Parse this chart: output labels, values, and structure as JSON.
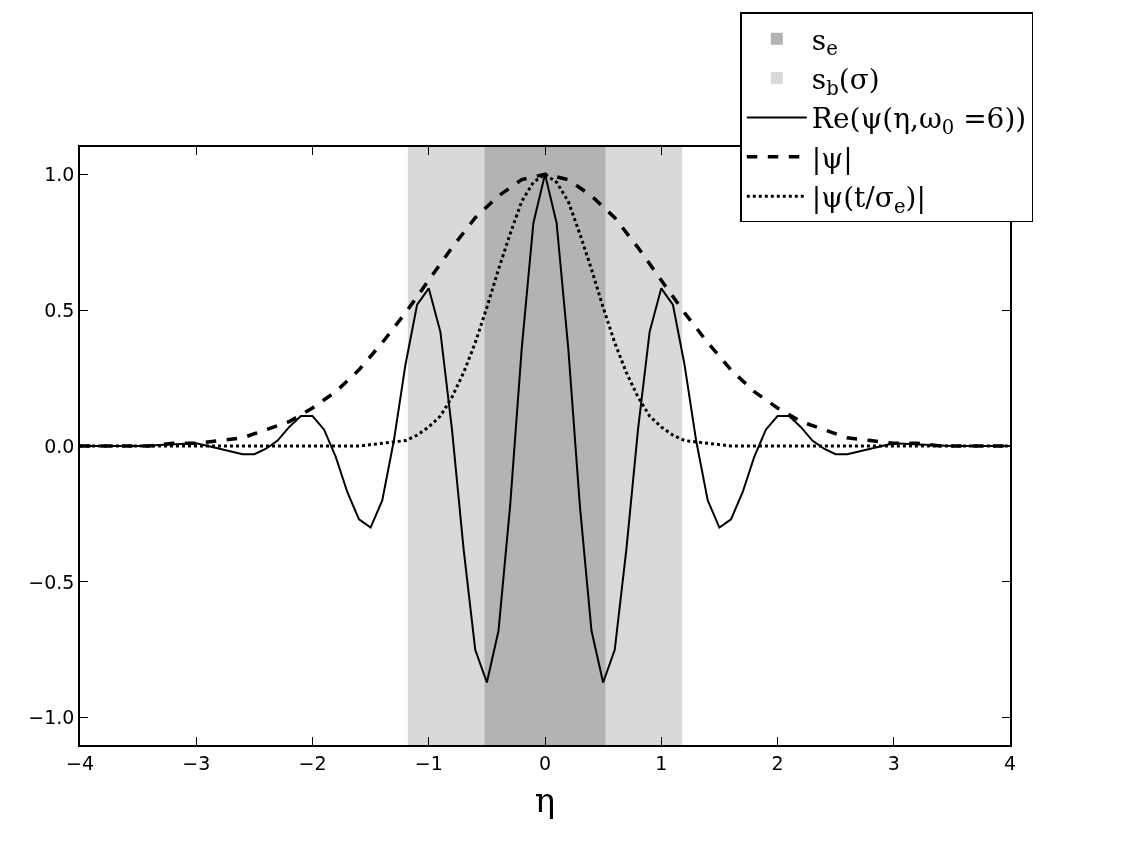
{
  "chart_data": {
    "type": "line",
    "xlabel": "η",
    "xlim": [
      -4,
      4
    ],
    "ylim": [
      -1.1,
      1.1
    ],
    "xticks": [
      {
        "value": -4,
        "label": "−4"
      },
      {
        "value": -3,
        "label": "−3"
      },
      {
        "value": -2,
        "label": "−2"
      },
      {
        "value": -1,
        "label": "−1"
      },
      0,
      1,
      2,
      3,
      4
    ],
    "yticks": [
      {
        "value": -1,
        "label": "−1.0"
      },
      {
        "value": -0.5,
        "label": "−0.5"
      },
      {
        "value": 0,
        "label": "0.0"
      },
      {
        "value": 0.5,
        "label": "0.5"
      },
      {
        "value": 1,
        "label": "1.0"
      }
    ],
    "grid": false,
    "legend": "top right",
    "marker": "none",
    "bands": [
      {
        "axis": "x",
        "from": -1.18,
        "to": 1.18,
        "label": "s$_{b}$(σ)",
        "color": "#d9d9d9"
      },
      {
        "axis": "x",
        "from": -0.52,
        "to": 0.52,
        "label": "s$_{e}$",
        "color": "#b3b3b3"
      }
    ],
    "series": [
      {
        "name": "Re(ψ(η,ω$_{0}$ =6))",
        "color": "#000000",
        "line_style": "solid",
        "x": [
          -4,
          -3.5,
          -3,
          -2.9,
          -2.8,
          -2.7,
          -2.6,
          -2.5,
          -2.4,
          -2.3,
          -2.2,
          -2.1,
          -2,
          -1.9,
          -1.8,
          -1.7,
          -1.6,
          -1.5,
          -1.4,
          -1.3,
          -1.2,
          -1.1,
          -1,
          -0.9,
          -0.8,
          -0.7,
          -0.6,
          -0.5,
          -0.4,
          -0.3,
          -0.2,
          -0.1,
          0,
          0.1,
          0.2,
          0.3,
          0.4,
          0.5,
          0.6,
          0.7,
          0.8,
          0.9,
          1,
          1.1,
          1.2,
          1.3,
          1.4,
          1.5,
          1.6,
          1.7,
          1.8,
          1.9,
          2,
          2.1,
          2.2,
          2.3,
          2.4,
          2.5,
          2.6,
          2.7,
          2.8,
          2.9,
          3,
          3.5,
          4
        ],
        "values": [
          0,
          0,
          0.01,
          0,
          -0.01,
          -0.02,
          -0.03,
          -0.03,
          -0.01,
          0.02,
          0.07,
          0.11,
          0.11,
          0.06,
          -0.04,
          -0.17,
          -0.27,
          -0.3,
          -0.2,
          0.02,
          0.3,
          0.52,
          0.58,
          0.42,
          0.06,
          -0.38,
          -0.75,
          -0.87,
          -0.68,
          -0.22,
          0.36,
          0.82,
          1,
          0.82,
          0.36,
          -0.22,
          -0.68,
          -0.87,
          -0.75,
          -0.38,
          0.06,
          0.42,
          0.58,
          0.52,
          0.3,
          0.02,
          -0.2,
          -0.3,
          -0.27,
          -0.17,
          -0.04,
          0.06,
          0.11,
          0.11,
          0.07,
          0.02,
          -0.01,
          -0.03,
          -0.03,
          -0.02,
          -0.01,
          0,
          0.01,
          0,
          0
        ]
      },
      {
        "name": "|ψ|",
        "color": "#000000",
        "line_style": "dashed",
        "x": [
          -4,
          -3.8,
          -3.6,
          -3.4,
          -3.2,
          -3,
          -2.8,
          -2.6,
          -2.4,
          -2.2,
          -2,
          -1.8,
          -1.6,
          -1.4,
          -1.2,
          -1,
          -0.8,
          -0.6,
          -0.4,
          -0.2,
          0,
          0.2,
          0.4,
          0.6,
          0.8,
          1,
          1.2,
          1.4,
          1.6,
          1.8,
          2,
          2.2,
          2.4,
          2.6,
          2.8,
          3,
          3.2,
          3.4,
          3.6,
          3.8,
          4
        ],
        "values": [
          0,
          0,
          0,
          0,
          0.01,
          0.01,
          0.02,
          0.03,
          0.06,
          0.09,
          0.14,
          0.2,
          0.28,
          0.38,
          0.49,
          0.61,
          0.73,
          0.84,
          0.92,
          0.98,
          1,
          0.98,
          0.92,
          0.84,
          0.73,
          0.61,
          0.49,
          0.38,
          0.28,
          0.2,
          0.14,
          0.09,
          0.06,
          0.03,
          0.02,
          0.01,
          0.01,
          0,
          0,
          0,
          0
        ]
      },
      {
        "name": "|ψ(t/σ$_{e}$)|",
        "color": "#000000",
        "line_style": "dotted",
        "x": [
          -4,
          -3,
          -2,
          -1.6,
          -1.4,
          -1.2,
          -1.1,
          -1,
          -0.9,
          -0.8,
          -0.7,
          -0.6,
          -0.5,
          -0.4,
          -0.3,
          -0.2,
          -0.1,
          0,
          0.1,
          0.2,
          0.3,
          0.4,
          0.5,
          0.6,
          0.7,
          0.8,
          0.9,
          1,
          1.1,
          1.2,
          1.4,
          1.6,
          2,
          3,
          4
        ],
        "values": [
          0,
          0,
          0,
          0,
          0.01,
          0.02,
          0.04,
          0.07,
          0.11,
          0.18,
          0.27,
          0.38,
          0.51,
          0.65,
          0.78,
          0.9,
          0.97,
          1,
          0.97,
          0.9,
          0.78,
          0.65,
          0.51,
          0.38,
          0.27,
          0.18,
          0.11,
          0.07,
          0.04,
          0.02,
          0.01,
          0,
          0,
          0,
          0
        ]
      }
    ]
  }
}
